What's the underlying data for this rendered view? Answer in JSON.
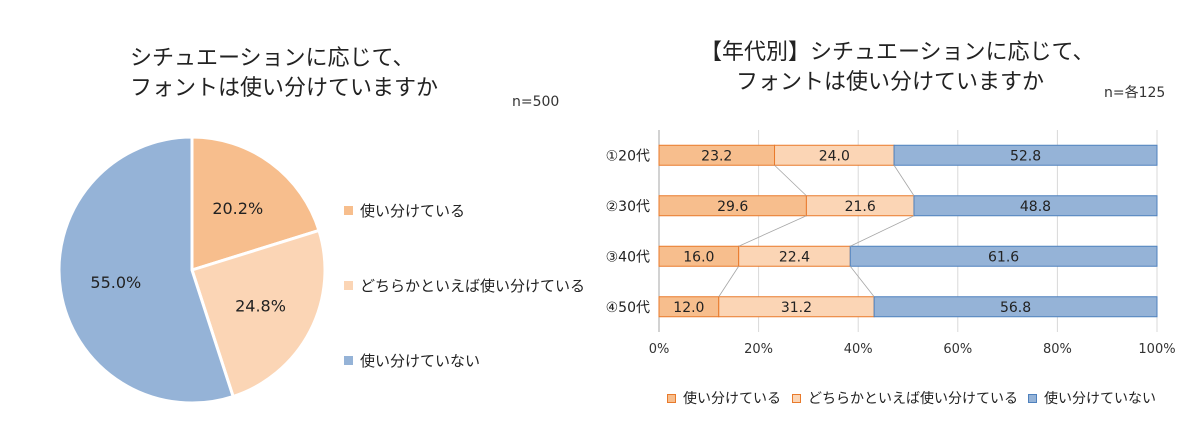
{
  "colors": {
    "use": "#F7BE8D",
    "rather": "#FBD5B5",
    "not": "#95B3D7",
    "use_border": "#E97A2B",
    "not_border": "#4F81BD",
    "grid": "#D9D9D9",
    "axis": "#A6A6A6",
    "connector": "#A6A6A6"
  },
  "left": {
    "title_line1": "シチュエーションに応じて、",
    "title_line2": "フォントは使い分けていますか",
    "n_label": "n=500"
  },
  "right": {
    "title_line1": "【年代別】シチュエーションに応じて、",
    "title_line2": "フォントは使い分けていますか",
    "n_label": "n=各125"
  },
  "chart_data": [
    {
      "type": "pie",
      "title": "シチュエーションに応じて、フォントは使い分けていますか",
      "slices": [
        {
          "label": "使い分けている",
          "value": 20.2,
          "display": "20.2%",
          "color": "#F7BE8D"
        },
        {
          "label": "どちらかといえば使い分けている",
          "value": 24.8,
          "display": "24.8%",
          "color": "#FBD5B5"
        },
        {
          "label": "使い分けていない",
          "value": 55.0,
          "display": "55.0%",
          "color": "#95B3D7"
        }
      ],
      "legend": "right"
    },
    {
      "type": "bar",
      "orientation": "horizontal",
      "stacked": "percent",
      "title": "【年代別】シチュエーションに応じて、フォントは使い分けていますか",
      "categories": [
        "①20代",
        "②30代",
        "③40代",
        "④50代"
      ],
      "series": [
        {
          "name": "使い分けている",
          "values": [
            23.2,
            29.6,
            16.0,
            12.0
          ],
          "labels": [
            "23.2",
            "29.6",
            "16.0",
            "12.0"
          ],
          "color": "#F7BE8D"
        },
        {
          "name": "どちらかといえば使い分けている",
          "values": [
            24.0,
            21.6,
            22.4,
            31.2
          ],
          "labels": [
            "24.0",
            "21.6",
            "22.4",
            "31.2"
          ],
          "color": "#FBD5B5"
        },
        {
          "name": "使い分けていない",
          "values": [
            52.8,
            48.8,
            61.6,
            56.8
          ],
          "labels": [
            "52.8",
            "48.8",
            "61.6",
            "56.8"
          ],
          "color": "#95B3D7"
        }
      ],
      "xlim": [
        0,
        100
      ],
      "xticks": [
        "0%",
        "20%",
        "40%",
        "60%",
        "80%",
        "100%"
      ],
      "grid": true,
      "legend": "bottom"
    }
  ]
}
